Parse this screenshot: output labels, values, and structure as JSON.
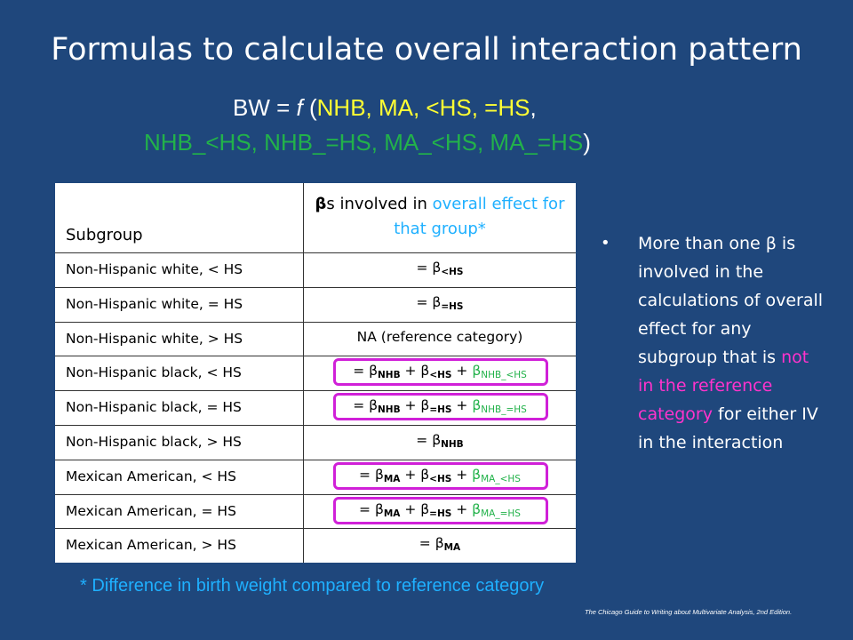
{
  "title": "Formulas to calculate overall interaction pattern",
  "formula": {
    "line1": {
      "lhs": "BW = ",
      "f": "f",
      "open": " (",
      "terms": "NHB, MA, <HS, =HS",
      "comma": ","
    },
    "line2": {
      "terms": "NHB_<HS, NHB_=HS, MA_<HS, MA_=HS",
      "close": ")"
    }
  },
  "table": {
    "header": {
      "subgroup": "Subgroup",
      "beta": "β",
      "betas_suffix": "s involved in ",
      "overall": "overall effect for that group*"
    },
    "rows": [
      {
        "subgroup": "Non-Hispanic white, < HS",
        "formula": [
          {
            "t": "= β"
          },
          {
            "s": "<HS"
          }
        ]
      },
      {
        "subgroup": "Non-Hispanic white, = HS",
        "formula": [
          {
            "t": "= β"
          },
          {
            "s": "=HS"
          }
        ]
      },
      {
        "subgroup": "Non-Hispanic white, > HS",
        "formula": [
          {
            "t": "NA (reference category)"
          }
        ]
      },
      {
        "subgroup": "Non-Hispanic black, < HS",
        "highlight": true,
        "formula": [
          {
            "t": "= β"
          },
          {
            "s": "NHB"
          },
          {
            "t": " + β"
          },
          {
            "s": "<HS"
          },
          {
            "t": " + "
          },
          {
            "g": "β"
          },
          {
            "gs": "NHB_<HS"
          }
        ]
      },
      {
        "subgroup": "Non-Hispanic black, = HS",
        "highlight": true,
        "formula": [
          {
            "t": "= β"
          },
          {
            "s": "NHB"
          },
          {
            "t": " + β"
          },
          {
            "s": "=HS"
          },
          {
            "t": " + "
          },
          {
            "g": "β"
          },
          {
            "gs": "NHB_=HS"
          }
        ]
      },
      {
        "subgroup": "Non-Hispanic black, > HS",
        "formula": [
          {
            "t": "= β"
          },
          {
            "s": "NHB"
          }
        ]
      },
      {
        "subgroup": "Mexican American, < HS",
        "highlight": true,
        "formula": [
          {
            "t": "= β"
          },
          {
            "s": "MA"
          },
          {
            "t": " + β"
          },
          {
            "s": "<HS"
          },
          {
            "t": " + "
          },
          {
            "g": "β"
          },
          {
            "gs": "MA_<HS"
          }
        ]
      },
      {
        "subgroup": "Mexican American, = HS",
        "highlight": true,
        "formula": [
          {
            "t": "= β"
          },
          {
            "s": "MA"
          },
          {
            "t": " + β"
          },
          {
            "s": "=HS"
          },
          {
            "t": " + "
          },
          {
            "g": "β"
          },
          {
            "gs": "MA_=HS"
          }
        ]
      },
      {
        "subgroup": "Mexican American, > HS",
        "formula": [
          {
            "t": "= β"
          },
          {
            "s": "MA"
          }
        ]
      }
    ]
  },
  "bullet": {
    "part1": "More than one β is involved in the calculations of overall effect for any subgroup that is ",
    "part2": "not in the reference category",
    "part3": " for either IV in the interaction"
  },
  "footnote": "* Difference in birth weight compared to reference category",
  "citation": "The Chicago Guide to Writing about  Multivariate Analysis, 2nd Edition.",
  "colors": {
    "background": "#1f477c",
    "yellow": "#ffff33",
    "green": "#22b24a",
    "cyan": "#1fb0ff",
    "magenta": "#ff33cc",
    "highlight_box": "#d020d8"
  }
}
